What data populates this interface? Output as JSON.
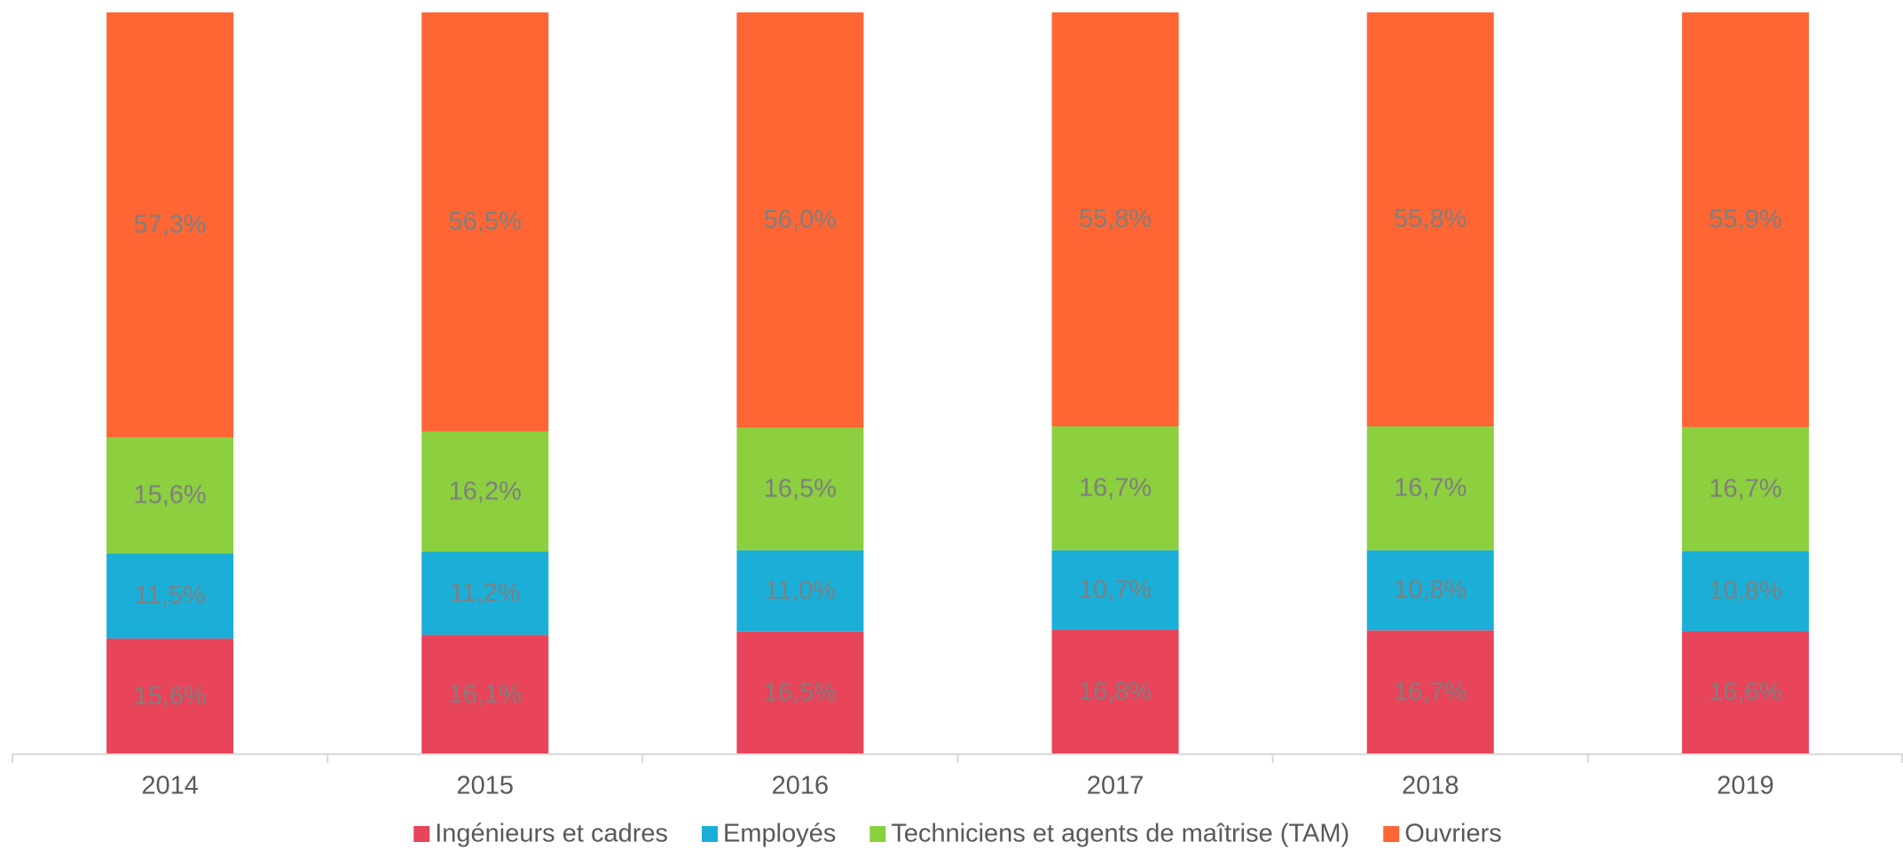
{
  "chart_data": {
    "type": "stacked_bar",
    "categories": [
      "2014",
      "2015",
      "2016",
      "2017",
      "2018",
      "2019"
    ],
    "ylim": [
      0,
      100
    ],
    "series": [
      {
        "name": "Ingénieurs et cadres",
        "color": "#e8445a",
        "values": [
          15.6,
          16.1,
          16.5,
          16.8,
          16.7,
          16.6
        ],
        "value_labels": [
          "15,6%",
          "16,1%",
          "16,5%",
          "16,8%",
          "16,7%",
          "16,6%"
        ]
      },
      {
        "name": "Employés",
        "color": "#1bafd8",
        "values": [
          11.5,
          11.2,
          11.0,
          10.7,
          10.8,
          10.8
        ],
        "value_labels": [
          "11,5%",
          "11,2%",
          "11,0%",
          "10,7%",
          "10,8%",
          "10,8%"
        ]
      },
      {
        "name": "Techniciens et agents de maîtrise (TAM)",
        "color": "#8ccf3f",
        "values": [
          15.6,
          16.2,
          16.5,
          16.7,
          16.7,
          16.7
        ],
        "value_labels": [
          "15,6%",
          "16,2%",
          "16,5%",
          "16,7%",
          "16,7%",
          "16,7%"
        ]
      },
      {
        "name": "Ouvriers",
        "color": "#ff6633",
        "values": [
          57.3,
          56.5,
          56.0,
          55.8,
          55.8,
          55.9
        ],
        "value_labels": [
          "57,3%",
          "56,5%",
          "56,0%",
          "55,8%",
          "55,8%",
          "55,9%"
        ]
      }
    ]
  }
}
